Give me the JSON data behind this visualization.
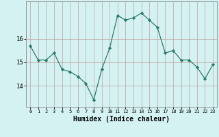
{
  "x": [
    0,
    1,
    2,
    3,
    4,
    5,
    6,
    7,
    8,
    9,
    10,
    11,
    12,
    13,
    14,
    15,
    16,
    17,
    18,
    19,
    20,
    21,
    22,
    23
  ],
  "y": [
    15.7,
    15.1,
    15.1,
    15.4,
    14.7,
    14.6,
    14.4,
    14.1,
    13.4,
    14.7,
    15.6,
    17.0,
    16.8,
    16.9,
    17.1,
    16.8,
    16.5,
    15.4,
    15.5,
    15.1,
    15.1,
    14.8,
    14.3,
    14.9
  ],
  "xlabel": "Humidex (Indice chaleur)",
  "line_color": "#2a7a6a",
  "marker": "D",
  "marker_size": 2.2,
  "bg_color": "#d4f2f2",
  "grid_color": "#c0a0a0",
  "ylim": [
    13.1,
    17.6
  ],
  "yticks": [
    14,
    15,
    16
  ],
  "xlim": [
    -0.5,
    23.5
  ]
}
